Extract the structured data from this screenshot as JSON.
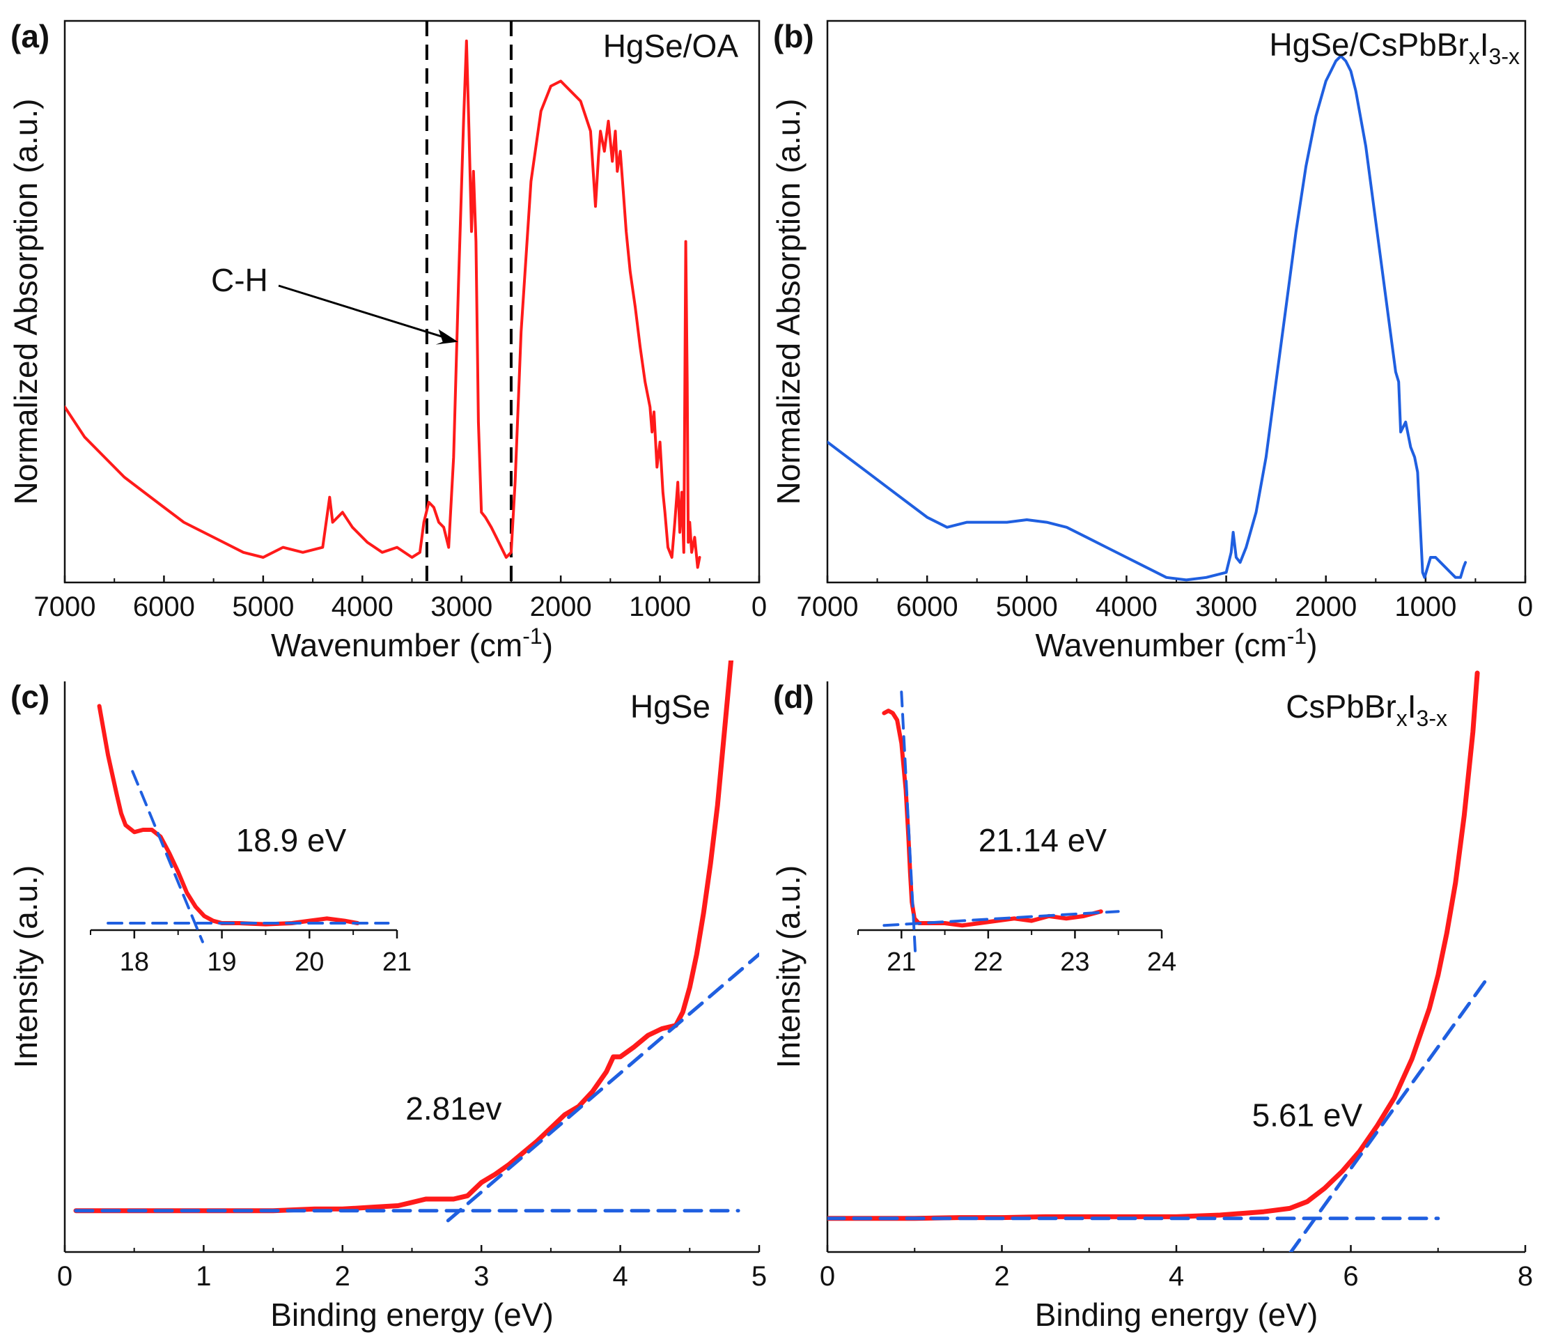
{
  "colors": {
    "red": "#ff1a1a",
    "blue": "#1f5fe0",
    "axis": "#111111",
    "black": "#000000"
  },
  "chart_data": [
    {
      "id": "a",
      "type": "line",
      "panel_label": "(a)",
      "title": "HgSe/OA",
      "xlabel": "Wavenumber (cm",
      "xlabel_sup": "-1",
      "xlabel_end": ")",
      "ylabel": "Normalized Absorption (a.u.)",
      "xlim": [
        7000,
        0
      ],
      "ylim": [
        0,
        1.12
      ],
      "xticks": [
        "7000",
        "6000",
        "5000",
        "4000",
        "3000",
        "2000",
        "1000",
        "0"
      ],
      "xtick_values": [
        7000,
        6000,
        5000,
        4000,
        3000,
        2000,
        1000,
        0
      ],
      "vlines": [
        3350,
        2500
      ],
      "annotation": {
        "text": "C-H",
        "points_to": [
          3050,
          0.48
        ]
      },
      "series": [
        {
          "name": "HgSe/OA",
          "color": "#ff1a1a",
          "x": [
            7000,
            6800,
            6600,
            6400,
            6200,
            6000,
            5800,
            5600,
            5400,
            5200,
            5000,
            4800,
            4600,
            4400,
            4330,
            4300,
            4200,
            4100,
            3950,
            3800,
            3650,
            3500,
            3420,
            3380,
            3330,
            3280,
            3230,
            3180,
            3130,
            3080,
            3030,
            2980,
            2950,
            2925,
            2900,
            2880,
            2855,
            2830,
            2800,
            2760,
            2700,
            2650,
            2600,
            2550,
            2500,
            2460,
            2400,
            2300,
            2200,
            2100,
            2000,
            1900,
            1800,
            1700,
            1650,
            1620,
            1600,
            1560,
            1520,
            1480,
            1450,
            1430,
            1400,
            1370,
            1340,
            1300,
            1250,
            1200,
            1150,
            1100,
            1080,
            1060,
            1030,
            1000,
            970,
            950,
            920,
            880,
            850,
            820,
            800,
            780,
            760,
            740,
            725,
            715,
            700,
            680,
            650,
            620,
            600
          ],
          "y": [
            0.35,
            0.29,
            0.25,
            0.21,
            0.18,
            0.15,
            0.12,
            0.1,
            0.08,
            0.06,
            0.05,
            0.07,
            0.06,
            0.07,
            0.17,
            0.12,
            0.14,
            0.11,
            0.08,
            0.06,
            0.07,
            0.05,
            0.06,
            0.12,
            0.16,
            0.15,
            0.12,
            0.11,
            0.07,
            0.25,
            0.6,
            0.92,
            1.08,
            0.9,
            0.7,
            0.82,
            0.68,
            0.32,
            0.14,
            0.13,
            0.11,
            0.09,
            0.07,
            0.05,
            0.06,
            0.2,
            0.5,
            0.8,
            0.94,
            0.99,
            1.0,
            0.98,
            0.96,
            0.9,
            0.75,
            0.85,
            0.9,
            0.86,
            0.92,
            0.84,
            0.9,
            0.82,
            0.86,
            0.78,
            0.7,
            0.62,
            0.55,
            0.47,
            0.4,
            0.35,
            0.3,
            0.34,
            0.23,
            0.28,
            0.18,
            0.14,
            0.07,
            0.05,
            0.12,
            0.2,
            0.1,
            0.18,
            0.06,
            0.68,
            0.4,
            0.08,
            0.12,
            0.06,
            0.09,
            0.03,
            0.05
          ]
        }
      ]
    },
    {
      "id": "b",
      "type": "line",
      "panel_label": "(b)",
      "title": "HgSe/CsPbBr",
      "title_sub1": "x",
      "title_mid": "I",
      "title_sub2": "3-x",
      "xlabel": "Wavenumber (cm",
      "xlabel_sup": "-1",
      "xlabel_end": ")",
      "ylabel": "Normalized Absorption (a.u.)",
      "xlim": [
        7000,
        0
      ],
      "ylim": [
        0,
        1.12
      ],
      "xticks": [
        "7000",
        "6000",
        "5000",
        "4000",
        "3000",
        "2000",
        "1000",
        "0"
      ],
      "xtick_values": [
        7000,
        6000,
        5000,
        4000,
        3000,
        2000,
        1000,
        0
      ],
      "series": [
        {
          "name": "HgSe/CsPbBrxI3-x",
          "color": "#1f5fe0",
          "x": [
            7000,
            6800,
            6600,
            6400,
            6200,
            6000,
            5800,
            5600,
            5400,
            5200,
            5000,
            4800,
            4600,
            4400,
            4200,
            4000,
            3800,
            3600,
            3400,
            3200,
            3000,
            2950,
            2930,
            2900,
            2860,
            2800,
            2700,
            2600,
            2500,
            2400,
            2300,
            2200,
            2100,
            2000,
            1950,
            1900,
            1850,
            1800,
            1750,
            1700,
            1600,
            1500,
            1400,
            1300,
            1270,
            1250,
            1200,
            1150,
            1110,
            1080,
            1050,
            1030,
            1010,
            980,
            950,
            900,
            850,
            800,
            750,
            700,
            650,
            620,
            600
          ],
          "y": [
            0.28,
            0.25,
            0.22,
            0.19,
            0.16,
            0.13,
            0.11,
            0.12,
            0.12,
            0.12,
            0.125,
            0.12,
            0.11,
            0.09,
            0.07,
            0.05,
            0.03,
            0.01,
            0.005,
            0.01,
            0.02,
            0.06,
            0.1,
            0.05,
            0.04,
            0.07,
            0.14,
            0.25,
            0.4,
            0.55,
            0.7,
            0.83,
            0.93,
            1.0,
            1.02,
            1.04,
            1.05,
            1.04,
            1.02,
            0.98,
            0.87,
            0.72,
            0.57,
            0.42,
            0.4,
            0.3,
            0.32,
            0.27,
            0.25,
            0.22,
            0.1,
            0.02,
            0.01,
            0.03,
            0.05,
            0.05,
            0.04,
            0.03,
            0.02,
            0.01,
            0.01,
            0.03,
            0.04
          ]
        }
      ]
    },
    {
      "id": "c",
      "type": "line",
      "panel_label": "(c)",
      "title": "HgSe",
      "xlabel": "Binding energy (eV)",
      "ylabel": "Intensity (a.u.)",
      "xlim": [
        0,
        5
      ],
      "ylim": [
        -0.25,
        3.2
      ],
      "xticks": [
        "0",
        "1",
        "2",
        "3",
        "4",
        "5"
      ],
      "xtick_values": [
        0,
        1,
        2,
        3,
        4,
        5
      ],
      "annotation": {
        "text": "2.81ev",
        "at": [
          2.8,
          0.55
        ]
      },
      "series": [
        {
          "name": "HgSe",
          "color": "#ff1a1a",
          "x": [
            0.08,
            0.5,
            1.0,
            1.5,
            1.8,
            2.0,
            2.2,
            2.4,
            2.5,
            2.6,
            2.7,
            2.8,
            2.9,
            3.0,
            3.1,
            3.2,
            3.3,
            3.4,
            3.5,
            3.6,
            3.7,
            3.8,
            3.9,
            3.95,
            4.0,
            4.1,
            4.2,
            4.3,
            4.4,
            4.45,
            4.5,
            4.55,
            4.6,
            4.65,
            4.7,
            4.75,
            4.8
          ],
          "y": [
            0.0,
            0.0,
            0.0,
            0.0,
            0.01,
            0.01,
            0.02,
            0.03,
            0.05,
            0.07,
            0.07,
            0.07,
            0.09,
            0.17,
            0.22,
            0.28,
            0.35,
            0.42,
            0.5,
            0.58,
            0.63,
            0.72,
            0.84,
            0.93,
            0.93,
            0.99,
            1.06,
            1.1,
            1.12,
            1.2,
            1.35,
            1.55,
            1.8,
            2.1,
            2.45,
            2.9,
            3.35
          ]
        },
        {
          "name": "baseline fit",
          "color": "#1f5fe0",
          "dashed": true,
          "x": [
            0.08,
            4.85
          ],
          "y": [
            0.0,
            0.0
          ]
        },
        {
          "name": "edge fit",
          "color": "#1f5fe0",
          "dashed": true,
          "x": [
            2.76,
            5.0
          ],
          "y": [
            -0.06,
            1.55
          ]
        }
      ],
      "inset": {
        "xlim": [
          17.5,
          21
        ],
        "ylim": [
          0,
          1.0
        ],
        "xticks": [
          "18",
          "19",
          "20",
          "21"
        ],
        "xtick_values": [
          18,
          19,
          20,
          21
        ],
        "annotation": "18.9 eV",
        "series": [
          {
            "name": "inset data",
            "color": "#ff1a1a",
            "x": [
              17.6,
              17.7,
              17.8,
              17.85,
              17.9,
              18.0,
              18.1,
              18.2,
              18.3,
              18.4,
              18.5,
              18.6,
              18.7,
              18.8,
              18.9,
              19.0,
              19.2,
              19.5,
              19.8,
              20.0,
              20.2,
              20.4,
              20.55
            ],
            "y": [
              0.96,
              0.75,
              0.58,
              0.5,
              0.45,
              0.42,
              0.43,
              0.43,
              0.4,
              0.33,
              0.25,
              0.16,
              0.1,
              0.06,
              0.04,
              0.03,
              0.03,
              0.025,
              0.03,
              0.04,
              0.05,
              0.04,
              0.03
            ]
          },
          {
            "name": "inset baseline",
            "color": "#1f5fe0",
            "dashed": true,
            "x": [
              17.7,
              20.9
            ],
            "y": [
              0.03,
              0.03
            ]
          },
          {
            "name": "inset edge",
            "color": "#1f5fe0",
            "dashed": true,
            "x": [
              17.98,
              18.78
            ],
            "y": [
              0.68,
              -0.05
            ]
          }
        ]
      }
    },
    {
      "id": "d",
      "type": "line",
      "panel_label": "(d)",
      "title": "CsPbBr",
      "title_sub1": "x",
      "title_mid": "I",
      "title_sub2": "3-x",
      "xlabel": "Binding energy (eV)",
      "ylabel": "Intensity (a.u.)",
      "xlim": [
        0,
        8
      ],
      "ylim": [
        -0.2,
        3.2
      ],
      "xticks": [
        "0",
        "2",
        "4",
        "6",
        "8"
      ],
      "xtick_values": [
        0,
        2,
        4,
        6,
        8
      ],
      "annotation": {
        "text": "5.61 eV",
        "at": [
          5.5,
          0.55
        ]
      },
      "series": [
        {
          "name": "CsPbBrxI3-x",
          "color": "#ff1a1a",
          "x": [
            0.0,
            0.5,
            1.0,
            1.5,
            2.0,
            2.5,
            3.0,
            3.5,
            4.0,
            4.5,
            5.0,
            5.3,
            5.5,
            5.7,
            5.9,
            6.1,
            6.3,
            6.5,
            6.7,
            6.9,
            7.0,
            7.1,
            7.2,
            7.3,
            7.4,
            7.45
          ],
          "y": [
            0.0,
            0.0,
            0.0,
            0.005,
            0.005,
            0.01,
            0.01,
            0.01,
            0.01,
            0.02,
            0.04,
            0.06,
            0.1,
            0.18,
            0.28,
            0.4,
            0.55,
            0.72,
            0.95,
            1.25,
            1.45,
            1.7,
            2.0,
            2.4,
            2.9,
            3.25
          ]
        },
        {
          "name": "baseline fit",
          "color": "#1f5fe0",
          "dashed": true,
          "x": [
            0.0,
            7.0
          ],
          "y": [
            0.0,
            0.0
          ]
        },
        {
          "name": "edge fit",
          "color": "#1f5fe0",
          "dashed": true,
          "x": [
            5.3,
            7.55
          ],
          "y": [
            -0.21,
            1.42
          ]
        }
      ],
      "inset": {
        "xlim": [
          20.5,
          24
        ],
        "ylim": [
          0,
          1.0
        ],
        "xticks": [
          "21",
          "22",
          "23",
          "24"
        ],
        "xtick_values": [
          21,
          22,
          23,
          24
        ],
        "annotation": "21.14 eV",
        "series": [
          {
            "name": "inset data",
            "color": "#ff1a1a",
            "x": [
              20.8,
              20.85,
              20.9,
              20.95,
              21.0,
              21.05,
              21.08,
              21.1,
              21.12,
              21.15,
              21.2,
              21.3,
              21.5,
              21.7,
              21.9,
              22.1,
              22.3,
              22.5,
              22.7,
              22.9,
              23.1,
              23.3
            ],
            "y": [
              0.93,
              0.94,
              0.93,
              0.9,
              0.8,
              0.6,
              0.4,
              0.25,
              0.12,
              0.05,
              0.03,
              0.03,
              0.03,
              0.02,
              0.03,
              0.04,
              0.05,
              0.04,
              0.06,
              0.05,
              0.06,
              0.08
            ]
          },
          {
            "name": "inset baseline",
            "color": "#1f5fe0",
            "dashed": true,
            "x": [
              20.8,
              23.5
            ],
            "y": [
              0.02,
              0.08
            ]
          },
          {
            "name": "inset edge",
            "color": "#1f5fe0",
            "dashed": true,
            "x": [
              21.0,
              21.16
            ],
            "y": [
              1.02,
              -0.1
            ]
          }
        ]
      }
    }
  ]
}
